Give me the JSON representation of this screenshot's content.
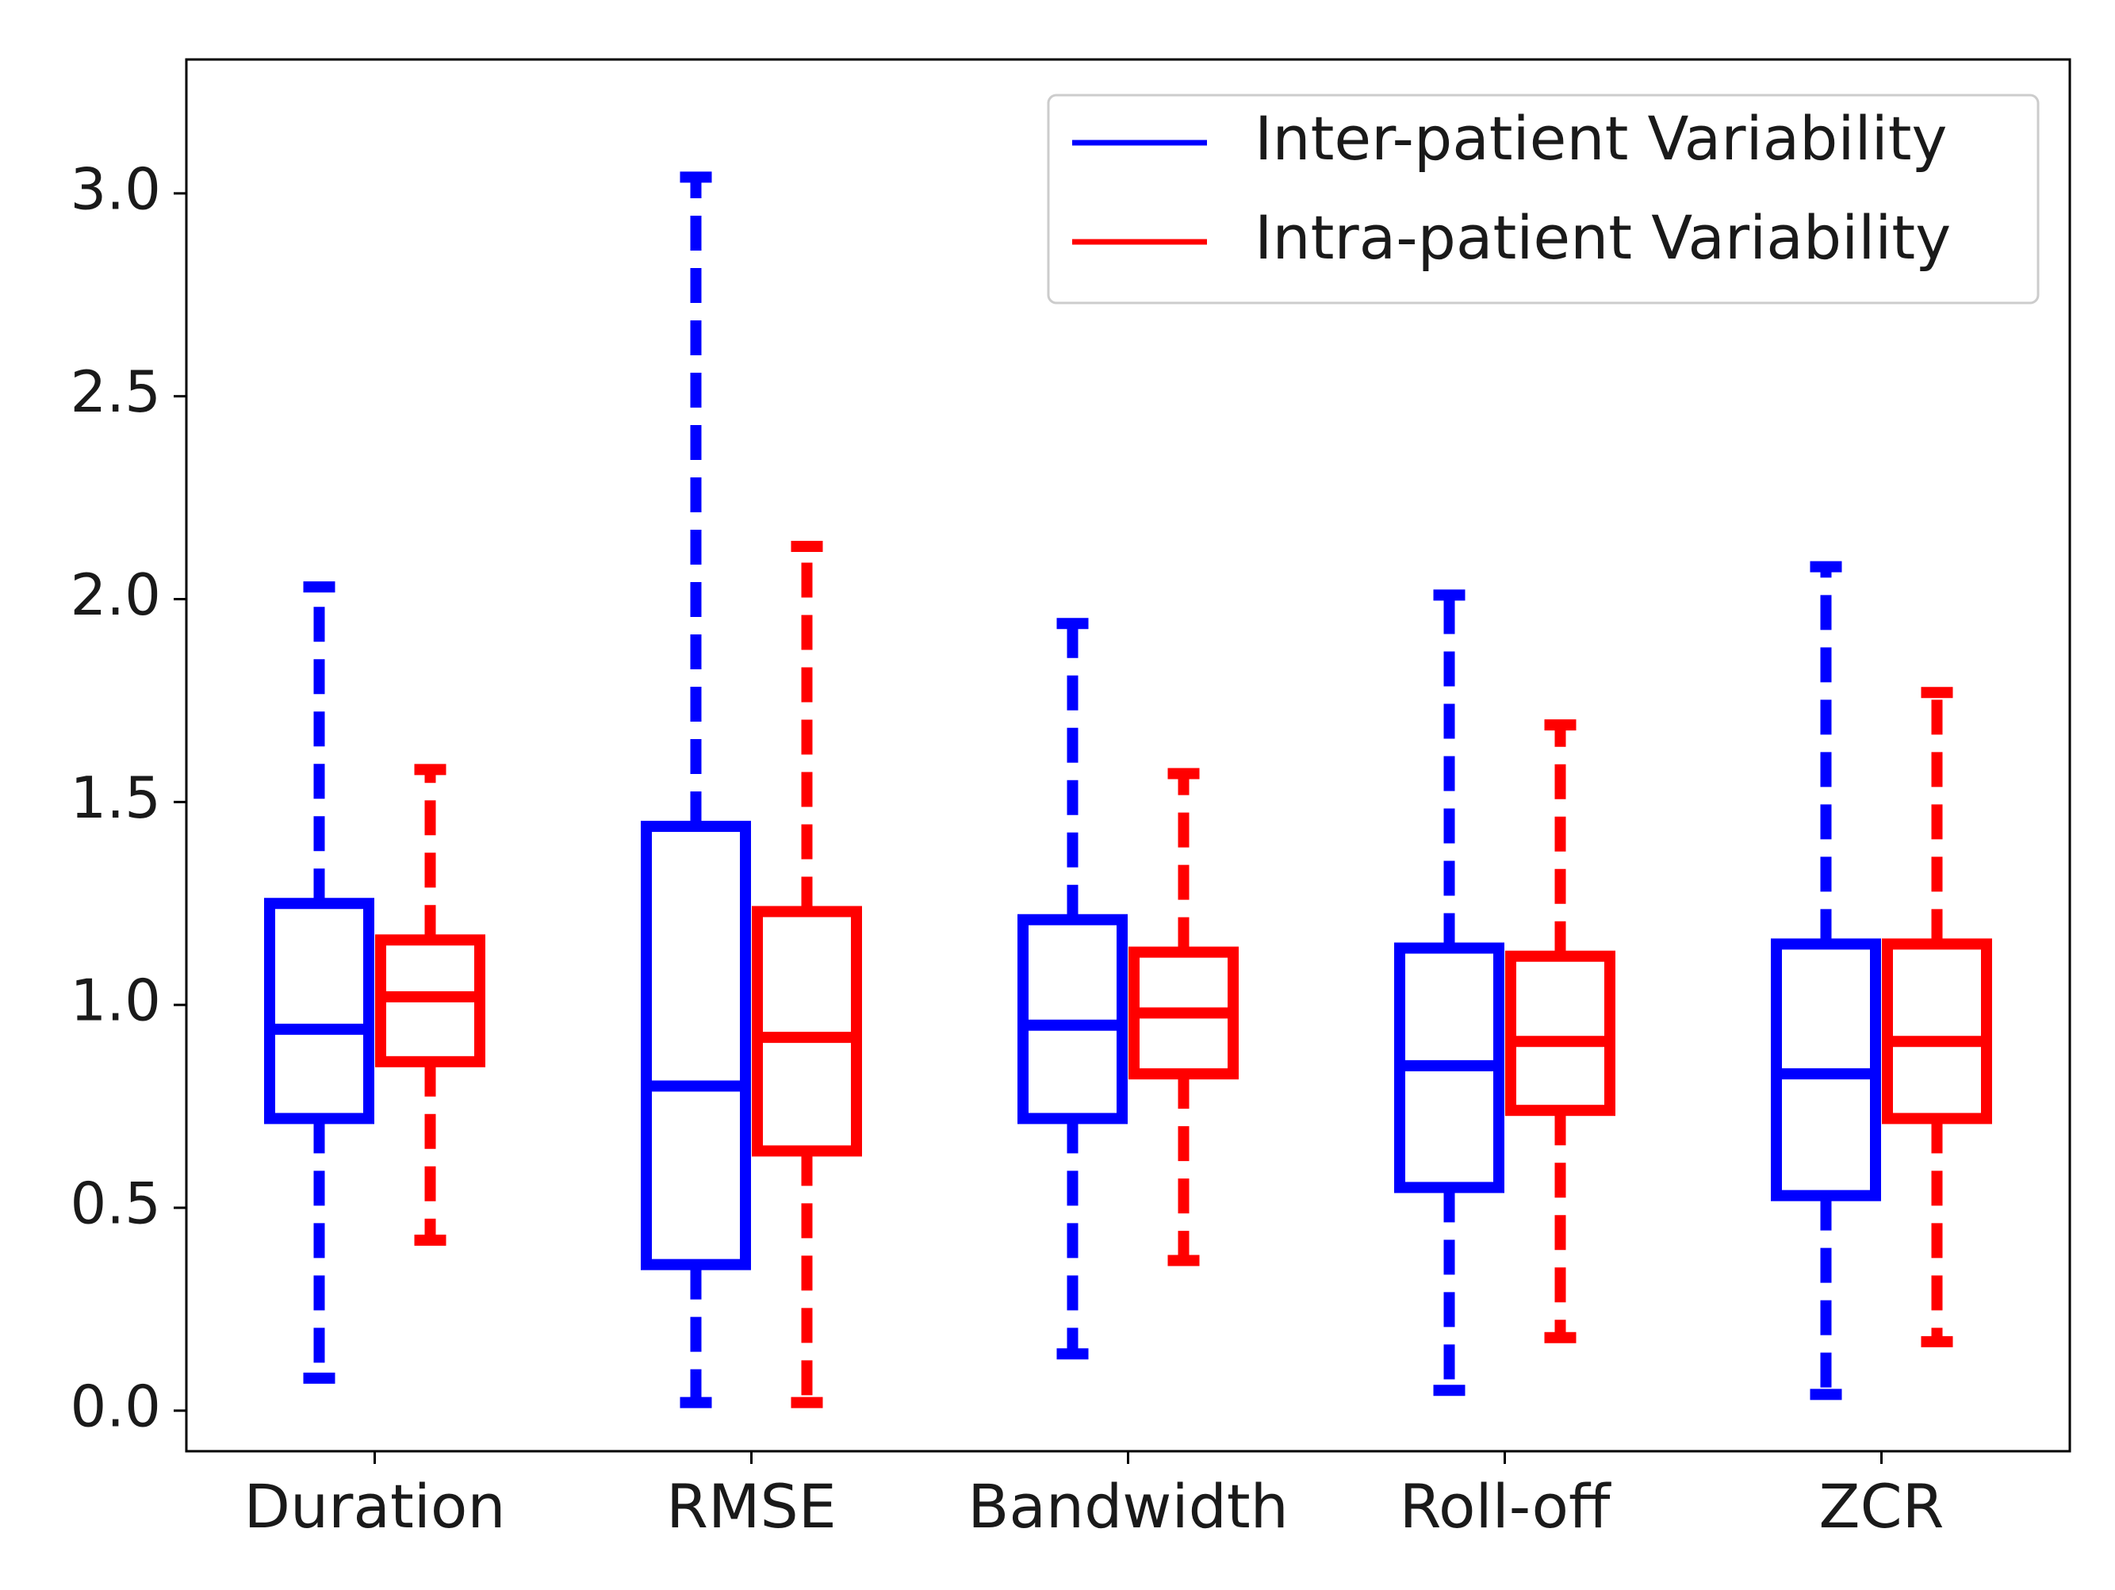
{
  "chart_data": {
    "type": "boxplot",
    "ylim": [
      -0.1,
      3.33
    ],
    "yticks": [
      0.0,
      0.5,
      1.0,
      1.5,
      2.0,
      2.5,
      3.0
    ],
    "ytick_labels": [
      "0.0",
      "0.5",
      "1.0",
      "1.5",
      "2.0",
      "2.5",
      "3.0"
    ],
    "categories": [
      "Duration",
      "RMSE",
      "Bandwidth",
      "Roll-off",
      "ZCR"
    ],
    "grid": false,
    "legend_position": "top-right",
    "series": [
      {
        "name": "Inter-patient Variability",
        "color": "#0000ff",
        "boxes": [
          {
            "whisker_low": 0.08,
            "q1": 0.72,
            "median": 0.94,
            "q3": 1.25,
            "whisker_high": 2.03
          },
          {
            "whisker_low": 0.02,
            "q1": 0.36,
            "median": 0.8,
            "q3": 1.44,
            "whisker_high": 3.04
          },
          {
            "whisker_low": 0.14,
            "q1": 0.72,
            "median": 0.95,
            "q3": 1.21,
            "whisker_high": 1.94
          },
          {
            "whisker_low": 0.05,
            "q1": 0.55,
            "median": 0.85,
            "q3": 1.14,
            "whisker_high": 2.01
          },
          {
            "whisker_low": 0.04,
            "q1": 0.53,
            "median": 0.83,
            "q3": 1.15,
            "whisker_high": 2.08
          }
        ]
      },
      {
        "name": "Intra-patient Variability",
        "color": "#ff0000",
        "boxes": [
          {
            "whisker_low": 0.42,
            "q1": 0.86,
            "median": 1.02,
            "q3": 1.16,
            "whisker_high": 1.58
          },
          {
            "whisker_low": 0.02,
            "q1": 0.64,
            "median": 0.92,
            "q3": 1.23,
            "whisker_high": 2.13
          },
          {
            "whisker_low": 0.37,
            "q1": 0.83,
            "median": 0.98,
            "q3": 1.13,
            "whisker_high": 1.57
          },
          {
            "whisker_low": 0.18,
            "q1": 0.74,
            "median": 0.91,
            "q3": 1.12,
            "whisker_high": 1.69
          },
          {
            "whisker_low": 0.17,
            "q1": 0.72,
            "median": 0.91,
            "q3": 1.15,
            "whisker_high": 1.77
          }
        ]
      }
    ]
  }
}
